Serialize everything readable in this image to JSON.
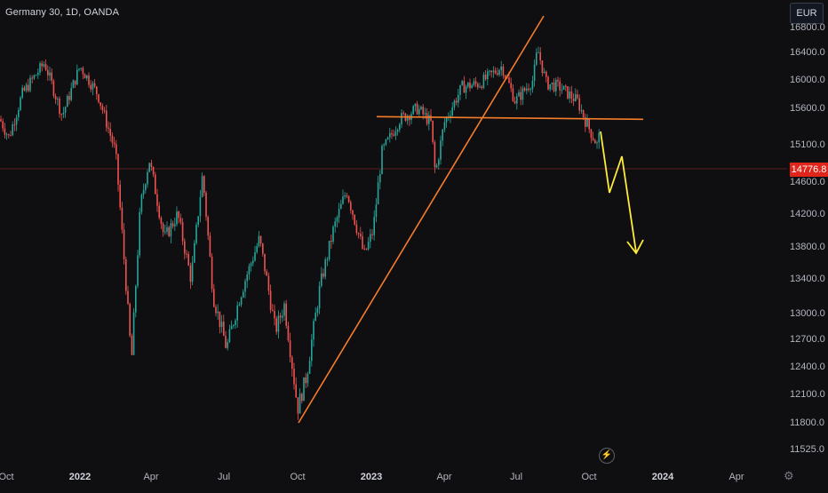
{
  "header": {
    "title": "Germany 30, 1D, OANDA"
  },
  "currency": "EUR",
  "price_axis": {
    "labels": [
      "16800.0",
      "16400.0",
      "16000.0",
      "15600.0",
      "15100.0",
      "14600.0",
      "14200.0",
      "13800.0",
      "13400.0",
      "13000.0",
      "12700.0",
      "12400.0",
      "12100.0",
      "11800.0",
      "11525.0"
    ],
    "last_price": "14776.8"
  },
  "time_axis": {
    "labels": [
      {
        "text": "Oct",
        "bold": false
      },
      {
        "text": "2022",
        "bold": true
      },
      {
        "text": "Apr",
        "bold": false
      },
      {
        "text": "Jul",
        "bold": false
      },
      {
        "text": "Oct",
        "bold": false
      },
      {
        "text": "2023",
        "bold": true
      },
      {
        "text": "Apr",
        "bold": false
      },
      {
        "text": "Jul",
        "bold": false
      },
      {
        "text": "Oct",
        "bold": false
      },
      {
        "text": "2024",
        "bold": true
      },
      {
        "text": "Apr",
        "bold": false
      }
    ]
  },
  "colors": {
    "up_candle": "#26a69a",
    "down_candle": "#ef5350",
    "trendline": "#f57c2a",
    "projection": "#ffeb3b",
    "last_price_bg": "#e0251b"
  },
  "icons": {
    "bolt": "lightning-icon",
    "settings": "gear-icon"
  },
  "chart_data": {
    "type": "candlestick",
    "symbol": "Germany 30",
    "interval": "1D",
    "broker": "OANDA",
    "last_price": 14776.8,
    "key_prices": [
      {
        "date": "2021-11",
        "value": 16250
      },
      {
        "date": "2022-01",
        "value": 16200
      },
      {
        "date": "2022-03",
        "value": 12450
      },
      {
        "date": "2022-06",
        "value": 14500
      },
      {
        "date": "2022-09",
        "value": 11800
      },
      {
        "date": "2023-02",
        "value": 15600
      },
      {
        "date": "2023-03",
        "value": 14700
      },
      {
        "date": "2023-06",
        "value": 16300
      },
      {
        "date": "2023-07",
        "value": 16500
      },
      {
        "date": "2023-10",
        "value": 15100
      }
    ],
    "annotations": {
      "support_line": 15450,
      "projection_low": 13750
    }
  }
}
